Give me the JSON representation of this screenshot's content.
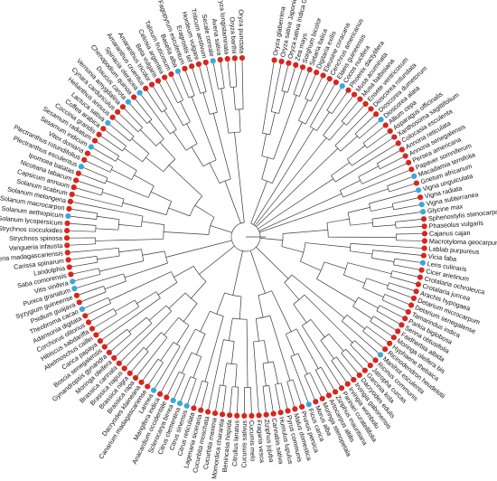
{
  "colors": {
    "red": "#d7261e",
    "blue": "#3aa8d8",
    "branch": "#3a3a3a"
  },
  "taxa": [
    {
      "name": "Oryza glaberrima",
      "c": "red"
    },
    {
      "name": "Oryza sativa Japonica Group",
      "c": "red"
    },
    {
      "name": "Oryza sativa Indica Group",
      "c": "red"
    },
    {
      "name": "Zea mays",
      "c": "red"
    },
    {
      "name": "Sorghum bicolor",
      "c": "red"
    },
    {
      "name": "Setaria italica",
      "c": "red"
    },
    {
      "name": "Digitaria exilis",
      "c": "red"
    },
    {
      "name": "Eleusine coracana",
      "c": "red"
    },
    {
      "name": "Cenchrus americanus",
      "c": "red"
    },
    {
      "name": "Elaeis guineensis",
      "c": "red"
    },
    {
      "name": "Cocos nucifera",
      "c": "blue"
    },
    {
      "name": "Phoenix dactylifera",
      "c": "red"
    },
    {
      "name": "Musa acuminata",
      "c": "red"
    },
    {
      "name": "Musa balbisiana",
      "c": "red"
    },
    {
      "name": "Ensete ventricosum",
      "c": "red"
    },
    {
      "name": "Dioscorea rotundata",
      "c": "red"
    },
    {
      "name": "Dioscorea dumetorum",
      "c": "red"
    },
    {
      "name": "Dioscorea alata",
      "c": "blue"
    },
    {
      "name": "Allium cepa",
      "c": "red"
    },
    {
      "name": "Asparagus officinalis",
      "c": "red"
    },
    {
      "name": "Xanthosoma sagittifolium",
      "c": "red"
    },
    {
      "name": "Colocasia esculenta",
      "c": "red"
    },
    {
      "name": "Annona reticulata",
      "c": "red"
    },
    {
      "name": "Annona senegalensis",
      "c": "red"
    },
    {
      "name": "Persea americana",
      "c": "red"
    },
    {
      "name": "Papaver somniferum",
      "c": "red"
    },
    {
      "name": "Macadamia ternifolia",
      "c": "blue"
    },
    {
      "name": "Gnetum africanum",
      "c": "red"
    },
    {
      "name": "Vigna unguiculata",
      "c": "blue"
    },
    {
      "name": "Vigna radiata",
      "c": "red"
    },
    {
      "name": "Vigna subterranea",
      "c": "blue"
    },
    {
      "name": "Glycine max",
      "c": "blue"
    },
    {
      "name": "Sphenostylis stenocarpa",
      "c": "red"
    },
    {
      "name": "Phaseolus vulgaris",
      "c": "red"
    },
    {
      "name": "Cajanus cajan",
      "c": "red"
    },
    {
      "name": "Macrotyloma geocarpum",
      "c": "red"
    },
    {
      "name": "Lablab purpureus",
      "c": "red"
    },
    {
      "name": "Vicia faba",
      "c": "red"
    },
    {
      "name": "Lens culinaris",
      "c": "blue"
    },
    {
      "name": "Cicer arietinum",
      "c": "red"
    },
    {
      "name": "Crotalaria ochroleuca",
      "c": "red"
    },
    {
      "name": "Crotalaria juncea",
      "c": "red"
    },
    {
      "name": "Arachis hypogaea",
      "c": "red"
    },
    {
      "name": "Detarium microcarpum",
      "c": "red"
    },
    {
      "name": "Detarium senegalense",
      "c": "red"
    },
    {
      "name": "Tamarindus indica",
      "c": "red"
    },
    {
      "name": "Parkia biglobosa",
      "c": "red"
    },
    {
      "name": "Senna obtusifolia",
      "c": "red"
    },
    {
      "name": "Faidherbia albida",
      "c": "red"
    },
    {
      "name": "Moringa oleifera bis",
      "c": "red"
    },
    {
      "name": "Hyphaene thebaica",
      "c": "red"
    },
    {
      "name": "Ricinodendron heudelotii",
      "c": "red"
    },
    {
      "name": "Manihot esculenta",
      "c": "blue"
    },
    {
      "name": "Ricinus communis",
      "c": "red"
    },
    {
      "name": "Jatropha curcas",
      "c": "red"
    },
    {
      "name": "Garcinia kola",
      "c": "red"
    },
    {
      "name": "Dacryodes edulis",
      "c": "red"
    },
    {
      "name": "Irvingia gabonensis",
      "c": "red"
    },
    {
      "name": "Irvingia wombolu",
      "c": "red"
    },
    {
      "name": "Parinari curatellifolia",
      "c": "red"
    },
    {
      "name": "Ziziphus mauritiana",
      "c": "red"
    },
    {
      "name": "Artocarpus altilis",
      "c": "red"
    },
    {
      "name": "Moringa stenopetala",
      "c": "red"
    },
    {
      "name": "Morus alba",
      "c": "red"
    },
    {
      "name": "Ficus carica",
      "c": "blue"
    },
    {
      "name": "Prunus persica",
      "c": "red"
    },
    {
      "name": "Malus domestica",
      "c": "red"
    },
    {
      "name": "Pyrus communis",
      "c": "red"
    },
    {
      "name": "Humulus lupulus",
      "c": "red"
    },
    {
      "name": "Cannabis sativa",
      "c": "red"
    },
    {
      "name": "Ziziphus jujuba",
      "c": "red"
    },
    {
      "name": "Fragaria vesca",
      "c": "red"
    },
    {
      "name": "Cucumis melo",
      "c": "red"
    },
    {
      "name": "Cucumis sativus",
      "c": "red"
    },
    {
      "name": "Citrullus lanatus",
      "c": "red"
    },
    {
      "name": "Benincasa hispida",
      "c": "red"
    },
    {
      "name": "Momordica charantia",
      "c": "red"
    },
    {
      "name": "Cucurbita maxima",
      "c": "red"
    },
    {
      "name": "Cucurbita moschata",
      "c": "red"
    },
    {
      "name": "Lagenaria siceraria",
      "c": "red"
    },
    {
      "name": "Citrus reticulata",
      "c": "red"
    },
    {
      "name": "Citrus sinensis",
      "c": "blue"
    },
    {
      "name": "Citrus clementina",
      "c": "blue"
    },
    {
      "name": "Sclerocarya birrea",
      "c": "blue"
    },
    {
      "name": "Anacardium occidentale",
      "c": "red"
    },
    {
      "name": "Mangifera indica",
      "c": "red"
    },
    {
      "name": "Lannea",
      "c": "blue"
    },
    {
      "name": "Canarium madagascariense",
      "c": "red"
    },
    {
      "name": "Dacryodes klaineana",
      "c": "red"
    },
    {
      "name": "Brassica rapa",
      "c": "red"
    },
    {
      "name": "Brassica nigra",
      "c": "red"
    },
    {
      "name": "Brassica napus",
      "c": "red"
    },
    {
      "name": "Brassica carinata",
      "c": "red"
    },
    {
      "name": "Moringa oleifera",
      "c": "red"
    },
    {
      "name": "Gynandropsis gynandra",
      "c": "red"
    },
    {
      "name": "Boscia senegalensis",
      "c": "red"
    },
    {
      "name": "Carica papaya",
      "c": "red"
    },
    {
      "name": "Abelmoschus caillei",
      "c": "red"
    },
    {
      "name": "Hibiscus sabdariffa",
      "c": "red"
    },
    {
      "name": "Corchorus olitorius",
      "c": "red"
    },
    {
      "name": "Adansonia digitata",
      "c": "red"
    },
    {
      "name": "Theobroma cacao",
      "c": "blue"
    },
    {
      "name": "Psidium guajava",
      "c": "red"
    },
    {
      "name": "Syzygium guineense",
      "c": "red"
    },
    {
      "name": "Punica granatum",
      "c": "blue"
    },
    {
      "name": "Vitis vinifera",
      "c": "blue"
    },
    {
      "name": "Saba comorensis",
      "c": "red"
    },
    {
      "name": "Landolphia",
      "c": "red"
    },
    {
      "name": "Carissa spinarum",
      "c": "red"
    },
    {
      "name": "Vangueria madagascariensis",
      "c": "red"
    },
    {
      "name": "Vangueria infausta",
      "c": "red"
    },
    {
      "name": "Strychnos spinosa",
      "c": "red"
    },
    {
      "name": "Strychnos cocculoides",
      "c": "red"
    },
    {
      "name": "Solanum lycopersicum",
      "c": "red"
    },
    {
      "name": "Solanum aethiopicum",
      "c": "blue"
    },
    {
      "name": "Solanum macrocarpon",
      "c": "red"
    },
    {
      "name": "Solanum melongena",
      "c": "red"
    },
    {
      "name": "Solanum scabrum",
      "c": "red"
    },
    {
      "name": "Capsicum annuum",
      "c": "red"
    },
    {
      "name": "Nicotiana tabacum",
      "c": "red"
    },
    {
      "name": "Ipomoea batatas",
      "c": "red"
    },
    {
      "name": "Plectranthus esculentus",
      "c": "blue"
    },
    {
      "name": "Plectranthus rotundifolius",
      "c": "red"
    },
    {
      "name": "Vitex doniana",
      "c": "red"
    },
    {
      "name": "Sesamum indicum",
      "c": "blue"
    },
    {
      "name": "Sesamum radiatum",
      "c": "red"
    },
    {
      "name": "Coccinia grandis",
      "c": "red"
    },
    {
      "name": "Coffea arabica",
      "c": "red"
    },
    {
      "name": "Lactuca sativa",
      "c": "blue"
    },
    {
      "name": "Helianthus annuus",
      "c": "red"
    },
    {
      "name": "Cynara cardunculus",
      "c": "red"
    },
    {
      "name": "Vernonia amygdalina",
      "c": "red"
    },
    {
      "name": "Daucus carota",
      "c": "blue"
    },
    {
      "name": "Chenopodium quinoa",
      "c": "red"
    },
    {
      "name": "Spinacia oleracea",
      "c": "blue"
    },
    {
      "name": "Amaranthus cruentus",
      "c": "red"
    },
    {
      "name": "Amaranthus tricolor",
      "c": "red"
    },
    {
      "name": "Beta vulgaris",
      "c": "red"
    },
    {
      "name": "Celosia argentea",
      "c": "red"
    },
    {
      "name": "Talinum fruticosum",
      "c": "red"
    },
    {
      "name": "Basella alba",
      "c": "blue"
    },
    {
      "name": "Fagopyrum esculentum",
      "c": "red"
    },
    {
      "name": "Eragrostis tef",
      "c": "red"
    },
    {
      "name": "Hordeum vulgare",
      "c": "red"
    },
    {
      "name": "Triticum aestivum",
      "c": "red"
    },
    {
      "name": "Secale cereale",
      "c": "blue"
    },
    {
      "name": "Avena sativa",
      "c": "red"
    },
    {
      "name": "Oryza longistaminata",
      "c": "red"
    },
    {
      "name": "Oryza barthii",
      "c": "red"
    },
    {
      "name": "Oryza punctata",
      "c": "red"
    }
  ]
}
